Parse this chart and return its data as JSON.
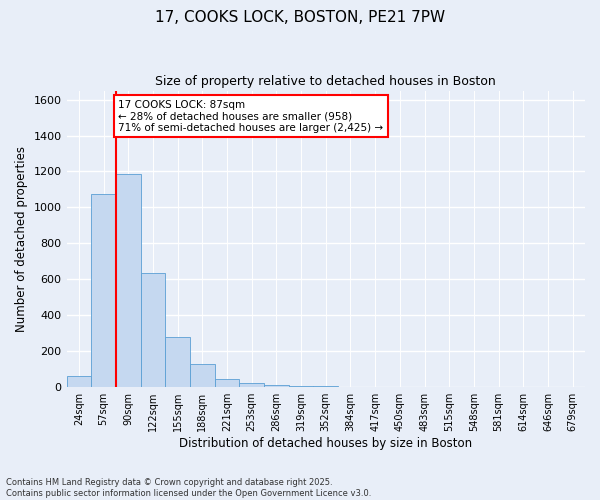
{
  "title_line1": "17, COOKS LOCK, BOSTON, PE21 7PW",
  "title_line2": "Size of property relative to detached houses in Boston",
  "xlabel": "Distribution of detached houses by size in Boston",
  "ylabel": "Number of detached properties",
  "bar_labels": [
    "24sqm",
    "57sqm",
    "90sqm",
    "122sqm",
    "155sqm",
    "188sqm",
    "221sqm",
    "253sqm",
    "286sqm",
    "319sqm",
    "352sqm",
    "384sqm",
    "417sqm",
    "450sqm",
    "483sqm",
    "515sqm",
    "548sqm",
    "581sqm",
    "614sqm",
    "646sqm",
    "679sqm"
  ],
  "bar_values": [
    65,
    1075,
    1185,
    635,
    280,
    130,
    47,
    23,
    15,
    8,
    5,
    0,
    0,
    0,
    0,
    0,
    0,
    0,
    0,
    0,
    0
  ],
  "bar_color": "#c5d8f0",
  "bar_edge_color": "#5a9fd4",
  "vline_x": 1.5,
  "vline_color": "red",
  "ylim": [
    0,
    1650
  ],
  "yticks": [
    0,
    200,
    400,
    600,
    800,
    1000,
    1200,
    1400,
    1600
  ],
  "annotation_text": "17 COOKS LOCK: 87sqm\n← 28% of detached houses are smaller (958)\n71% of semi-detached houses are larger (2,425) →",
  "annotation_box_color": "#ffffff",
  "annotation_box_edge": "red",
  "footer_line1": "Contains HM Land Registry data © Crown copyright and database right 2025.",
  "footer_line2": "Contains public sector information licensed under the Open Government Licence v3.0.",
  "bg_color": "#e8eef8",
  "plot_bg_color": "#e8eef8",
  "grid_color": "#ffffff"
}
